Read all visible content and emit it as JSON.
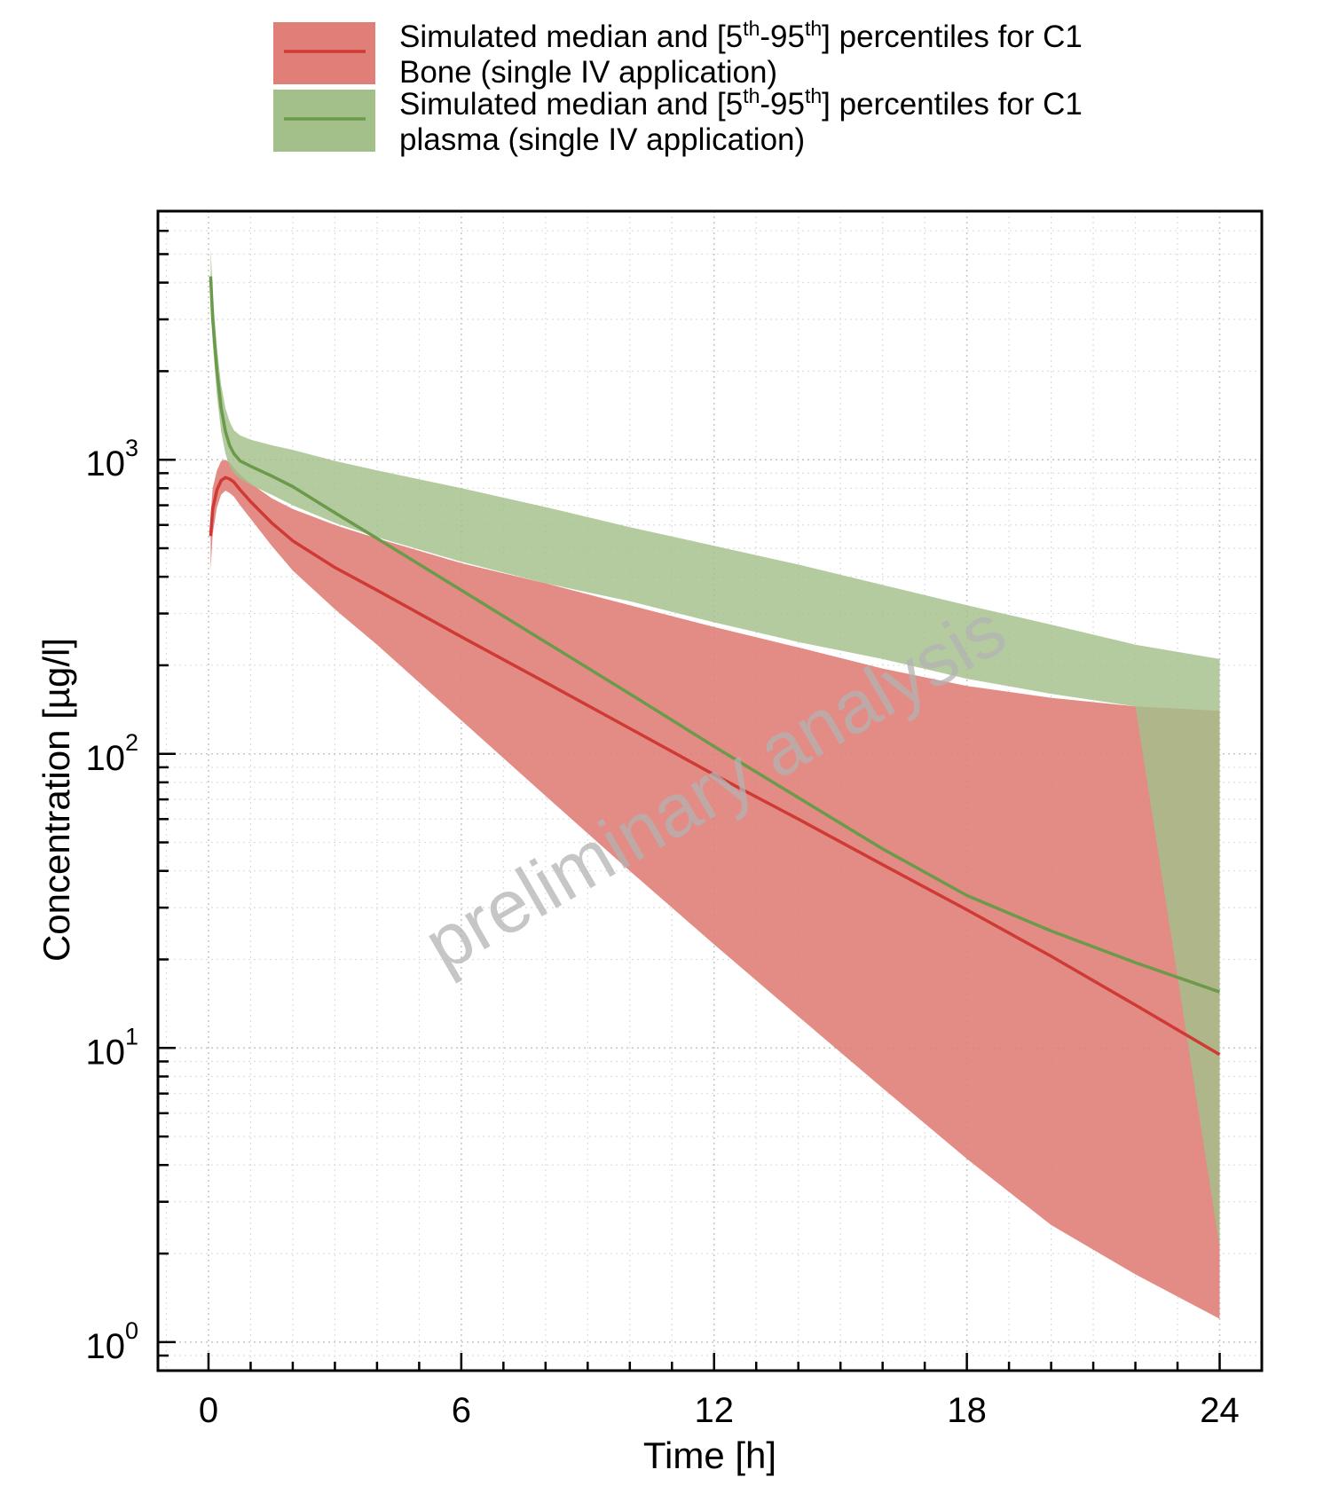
{
  "chart_data": {
    "type": "area",
    "title": "",
    "xlabel": "Time [h]",
    "ylabel": "Concentration [µg/l]",
    "x_scale": "linear",
    "y_scale": "log",
    "xlim": [
      -1.2,
      25
    ],
    "ylim": [
      0.8,
      7000
    ],
    "x_ticks": [
      0,
      6,
      12,
      18,
      24
    ],
    "x_tick_labels": [
      "0",
      "6",
      "12",
      "18",
      "24"
    ],
    "y_ticks": [
      1,
      10,
      100,
      1000
    ],
    "y_tick_labels": [
      {
        "base": "10",
        "exp": "0"
      },
      {
        "base": "10",
        "exp": "1"
      },
      {
        "base": "10",
        "exp": "2"
      },
      {
        "base": "10",
        "exp": "3"
      }
    ],
    "grid": true,
    "legend_position": "top",
    "watermark": "preliminary analysis",
    "series": [
      {
        "name": "Simulated median and [5th-95th] percentiles for C1 Bone (single IV application)",
        "legend_lines": [
          [
            {
              "t": "Simulated median and [5"
            },
            {
              "t": "th",
              "sup": true
            },
            {
              "t": "-95"
            },
            {
              "t": "th",
              "sup": true
            },
            {
              "t": "] percentiles for C1"
            }
          ],
          [
            {
              "t": "Bone (single IV application)"
            }
          ]
        ],
        "line_color": "#d03a34",
        "band_color": "#e07e78",
        "x": [
          0.05,
          0.1,
          0.2,
          0.3,
          0.4,
          0.5,
          0.6,
          0.75,
          1,
          1.5,
          2,
          3,
          4,
          6,
          8,
          10,
          12,
          14,
          16,
          18,
          20,
          22,
          24
        ],
        "median": [
          550,
          680,
          790,
          850,
          870,
          860,
          840,
          790,
          720,
          610,
          530,
          430,
          360,
          250,
          175,
          122,
          85,
          60,
          42,
          29.5,
          20.5,
          14,
          9.5
        ],
        "p05": [
          420,
          560,
          690,
          760,
          785,
          770,
          750,
          700,
          630,
          510,
          420,
          310,
          235,
          130,
          72,
          40,
          22.5,
          12.8,
          7.3,
          4.2,
          2.5,
          1.7,
          1.2
        ],
        "p95": [
          650,
          800,
          920,
          990,
          1000,
          980,
          940,
          890,
          830,
          740,
          680,
          600,
          540,
          445,
          380,
          320,
          270,
          230,
          195,
          170,
          155,
          145,
          140
        ]
      },
      {
        "name": "Simulated median and [5th-95th] percentiles for C1 plasma (single IV application)",
        "legend_lines": [
          [
            {
              "t": "Simulated median and [5"
            },
            {
              "t": "th",
              "sup": true
            },
            {
              "t": "-95"
            },
            {
              "t": "th",
              "sup": true
            },
            {
              "t": "] percentiles for C1"
            }
          ],
          [
            {
              "t": "plasma (single IV application)"
            }
          ]
        ],
        "line_color": "#6a9a4a",
        "band_color": "#a4c08a",
        "x": [
          0.05,
          0.1,
          0.2,
          0.3,
          0.4,
          0.5,
          0.6,
          0.75,
          1,
          1.5,
          2,
          3,
          4,
          6,
          8,
          10,
          12,
          14,
          16,
          18,
          20,
          22,
          24
        ],
        "median": [
          4200,
          3000,
          2000,
          1500,
          1250,
          1120,
          1050,
          990,
          950,
          880,
          810,
          660,
          540,
          360,
          240,
          160,
          106,
          71,
          47.5,
          33,
          25,
          19.5,
          15.5
        ],
        "p05": [
          3500,
          2500,
          1650,
          1250,
          1050,
          950,
          900,
          860,
          820,
          760,
          700,
          610,
          545,
          450,
          380,
          330,
          280,
          240,
          210,
          180,
          160,
          145,
          2.1
        ],
        "p95": [
          5200,
          3700,
          2400,
          1800,
          1500,
          1350,
          1260,
          1210,
          1170,
          1120,
          1080,
          990,
          920,
          800,
          690,
          590,
          510,
          440,
          375,
          320,
          275,
          235,
          210
        ]
      }
    ]
  }
}
